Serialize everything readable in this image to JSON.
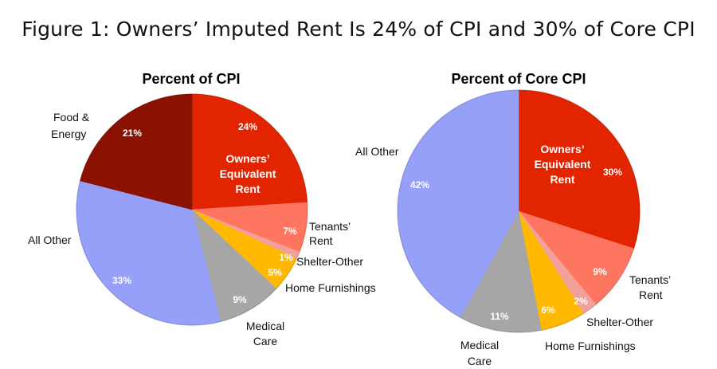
{
  "title": "Figure 1: Owners’ Imputed Rent Is 24% of CPI and 30% of Core CPI",
  "chart_data": [
    {
      "type": "pie",
      "title": "Percent of CPI",
      "slices": [
        {
          "name": "Owners’ Equivalent Rent",
          "value": 24,
          "label": "24%",
          "color": "#e32400"
        },
        {
          "name": "Tenants’ Rent",
          "value": 7,
          "label": "7%",
          "color": "#ff7660"
        },
        {
          "name": "Shelter-Other",
          "value": 1,
          "label": "1%",
          "color": "#f4a09a"
        },
        {
          "name": "Home Furnishings",
          "value": 5,
          "label": "5%",
          "color": "#ffb900"
        },
        {
          "name": "Medical Care",
          "value": 9,
          "label": "9%",
          "color": "#a6a6a6"
        },
        {
          "name": "All Other",
          "value": 33,
          "label": "33%",
          "color": "#96a0f8"
        },
        {
          "name": "Food & Energy",
          "value": 21,
          "label": "21%",
          "color": "#8b1200"
        }
      ]
    },
    {
      "type": "pie",
      "title": "Percent of Core CPI",
      "slices": [
        {
          "name": "Owners’ Equivalent Rent",
          "value": 30,
          "label": "30%",
          "color": "#e32400"
        },
        {
          "name": "Tenants’ Rent",
          "value": 9,
          "label": "9%",
          "color": "#ff7660"
        },
        {
          "name": "Shelter-Other",
          "value": 2,
          "label": "2%",
          "color": "#f4a09a"
        },
        {
          "name": "Home Furnishings",
          "value": 6,
          "label": "6%",
          "color": "#ffb900"
        },
        {
          "name": "Medical Care",
          "value": 11,
          "label": "11%",
          "color": "#a6a6a6"
        },
        {
          "name": "All Other",
          "value": 42,
          "label": "42%",
          "color": "#96a0f8"
        }
      ]
    }
  ],
  "labels": {
    "left": {
      "oer": [
        "Owners’",
        "Equivalent",
        "Rent"
      ],
      "tenants": [
        "Tenants’",
        "Rent"
      ],
      "shelter": "Shelter-Other",
      "furnishings": "Home Furnishings",
      "medical": [
        "Medical",
        "Care"
      ],
      "allother": "All Other",
      "food": [
        "Food &",
        "Energy"
      ]
    },
    "right": {
      "oer": [
        "Owners’",
        "Equivalent",
        "Rent"
      ],
      "tenants": [
        "Tenants’",
        "Rent"
      ],
      "shelter": "Shelter-Other",
      "furnishings": "Home Furnishings",
      "medical": [
        "Medical",
        "Care"
      ],
      "allother": "All Other"
    }
  }
}
